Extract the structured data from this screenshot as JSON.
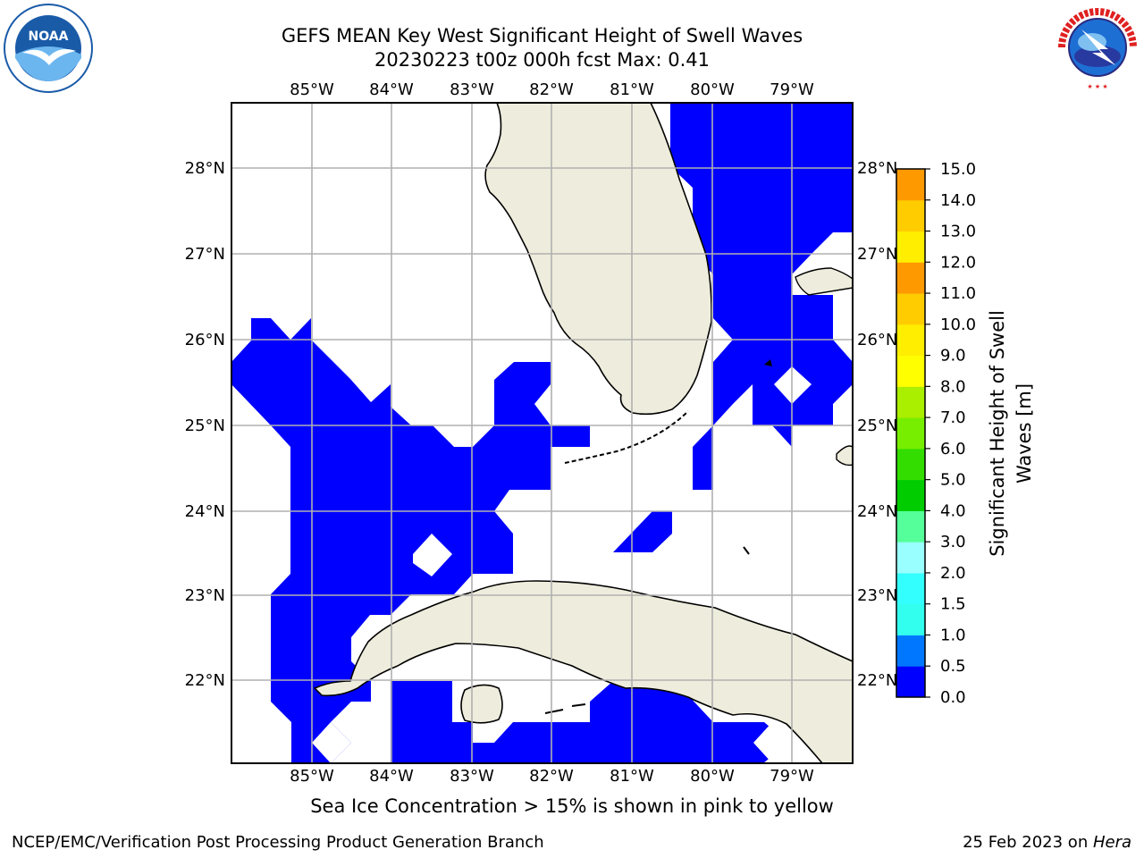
{
  "header": {
    "title_line1": "GEFS MEAN Key West Significant Height of Swell Waves",
    "title_line2": "20230223 t00z 000h fcst   Max: 0.41"
  },
  "logos": {
    "left": {
      "icon": "noaa-logo",
      "text": "NOAA"
    },
    "right": {
      "icon": "national-weather-service-logo",
      "text": "NATIONAL WEATHER SERVICE"
    }
  },
  "map": {
    "type": "heatmap",
    "lon_labels": [
      "85°W",
      "84°W",
      "83°W",
      "82°W",
      "81°W",
      "80°W",
      "79°W"
    ],
    "lat_labels": [
      "28°N",
      "27°N",
      "26°N",
      "25°N",
      "24°N",
      "23°N",
      "22°N"
    ],
    "land_color": "#eeecdc",
    "field_color": "#0000ff",
    "grid_color": "#b0b0b0"
  },
  "colorbar": {
    "label": "Significant Height of Swell Waves [m]",
    "label_line1": "Significant Height of Swell",
    "label_line2": "Waves [m]",
    "ticks": [
      "15.0",
      "14.0",
      "13.0",
      "12.0",
      "11.0",
      "10.0",
      "9.0",
      "8.0",
      "7.0",
      "6.0",
      "5.0",
      "4.0",
      "3.0",
      "2.0",
      "1.5",
      "1.0",
      "0.5",
      "0.0"
    ],
    "colors_bottom_to_top": [
      "#0000ff",
      "#0077ff",
      "#00ddff",
      "#33ffee",
      "#33ffff",
      "#99ffff",
      "#55ff99",
      "#33dd55",
      "#00cc00",
      "#33dd00",
      "#77ee00",
      "#aaee00",
      "#ddee00",
      "#ffff00",
      "#ffee00",
      "#ffcc00",
      "#ff9900",
      "#ff7700",
      "#ff5500",
      "#ff2200",
      "#ff0000"
    ]
  },
  "chart_data": {
    "type": "heatmap",
    "title": "GEFS MEAN Key West Significant Height of Swell Waves",
    "subtitle": "20230223 t00z 000h fcst   Max: 0.41",
    "x_tick_labels": [
      "85°W",
      "84°W",
      "83°W",
      "82°W",
      "81°W",
      "80°W",
      "79°W"
    ],
    "y_tick_labels": [
      "28°N",
      "27°N",
      "26°N",
      "25°N",
      "24°N",
      "23°N",
      "22°N"
    ],
    "value_max": 0.41,
    "colorbar_range": [
      0.0,
      15.0
    ],
    "colorbar_label": "Significant Height of Swell Waves [m]",
    "grid": true
  },
  "footer": {
    "note": "Sea Ice Concentration > 15% is shown in pink to yellow",
    "left": "NCEP/EMC/Verification Post Processing Product Generation Branch",
    "right_date": "25 Feb 2023 on ",
    "right_system": "Hera"
  }
}
